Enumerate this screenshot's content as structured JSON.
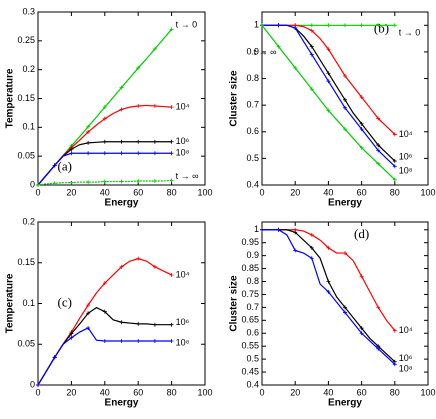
{
  "chart_data": [
    {
      "type": "line",
      "tag": "(a)",
      "x_label": "Energy",
      "y_label": "Temperature",
      "x": [
        0,
        5,
        10,
        15,
        20,
        25,
        30,
        35,
        40,
        45,
        50,
        55,
        60,
        65,
        70,
        75,
        80
      ],
      "xlim": [
        0,
        100
      ],
      "xticks": [
        0,
        20,
        40,
        60,
        80,
        100
      ],
      "ylim": [
        0,
        0.3
      ],
      "yticks": [
        0,
        0.05,
        0.1,
        0.15,
        0.2,
        0.25,
        0.3
      ],
      "series": [
        {
          "name": "t → 0",
          "color": "#00cc00",
          "values": [
            0,
            0.017,
            0.034,
            0.051,
            0.068,
            0.084,
            0.101,
            0.118,
            0.135,
            0.152,
            0.169,
            0.186,
            0.203,
            0.219,
            0.236,
            0.253,
            0.27
          ]
        },
        {
          "name": "10⁴",
          "color": "#ff0000",
          "values": [
            0,
            0.017,
            0.034,
            0.051,
            0.065,
            0.078,
            0.092,
            0.104,
            0.115,
            0.124,
            0.131,
            0.135,
            0.137,
            0.138,
            0.137,
            0.136,
            0.135
          ]
        },
        {
          "name": "10⁶",
          "color": "#000000",
          "values": [
            0,
            0.017,
            0.034,
            0.05,
            0.062,
            0.07,
            0.073,
            0.074,
            0.075,
            0.075,
            0.075,
            0.075,
            0.075,
            0.075,
            0.075,
            0.075,
            0.075
          ]
        },
        {
          "name": "10⁸",
          "color": "#0000ff",
          "values": [
            0,
            0.017,
            0.034,
            0.05,
            0.055,
            0.055,
            0.055,
            0.055,
            0.055,
            0.055,
            0.055,
            0.055,
            0.055,
            0.055,
            0.055,
            0.055,
            0.055
          ]
        },
        {
          "name": "t → ∞",
          "color": "#00cc00",
          "values": [
            0,
            0.002,
            0.003,
            0.004,
            0.004,
            0.005,
            0.005,
            0.005,
            0.006,
            0.006,
            0.006,
            0.006,
            0.007,
            0.007,
            0.007,
            0.007,
            0.008
          ]
        }
      ]
    },
    {
      "type": "line",
      "tag": "(b)",
      "x_label": "Energy",
      "y_label": "Cluster size",
      "x": [
        0,
        5,
        10,
        15,
        20,
        25,
        30,
        35,
        40,
        45,
        50,
        55,
        60,
        65,
        70,
        75,
        80
      ],
      "xlim": [
        0,
        100
      ],
      "xticks": [
        0,
        20,
        40,
        60,
        80,
        100
      ],
      "ylim": [
        0.4,
        1.05
      ],
      "yticks": [
        0.4,
        0.5,
        0.6,
        0.7,
        0.8,
        0.9,
        1
      ],
      "series": [
        {
          "name": "t → 0",
          "color": "#00cc00",
          "values": [
            1,
            1,
            1,
            1,
            1,
            1,
            1,
            1,
            1,
            1,
            1,
            1,
            1,
            1,
            1,
            1,
            1
          ]
        },
        {
          "name": "10⁴",
          "color": "#ff0000",
          "values": [
            1,
            1,
            1,
            1,
            1,
            0.995,
            0.98,
            0.95,
            0.91,
            0.86,
            0.81,
            0.77,
            0.73,
            0.69,
            0.65,
            0.62,
            0.59
          ]
        },
        {
          "name": "10⁶",
          "color": "#000000",
          "values": [
            1,
            1,
            1,
            1,
            0.99,
            0.96,
            0.92,
            0.87,
            0.82,
            0.77,
            0.72,
            0.67,
            0.63,
            0.59,
            0.55,
            0.52,
            0.49
          ]
        },
        {
          "name": "10⁸",
          "color": "#0000ff",
          "values": [
            1,
            1,
            1,
            1,
            0.99,
            0.94,
            0.89,
            0.84,
            0.79,
            0.74,
            0.69,
            0.65,
            0.61,
            0.57,
            0.53,
            0.5,
            0.47
          ]
        },
        {
          "name": "t → ∞",
          "color": "#00cc00",
          "values": [
            1,
            0.96,
            0.92,
            0.88,
            0.84,
            0.8,
            0.76,
            0.72,
            0.68,
            0.645,
            0.61,
            0.575,
            0.54,
            0.51,
            0.48,
            0.45,
            0.42
          ]
        }
      ]
    },
    {
      "type": "line",
      "tag": "(c)",
      "x_label": "Energy",
      "y_label": "Temperature",
      "x": [
        0,
        5,
        10,
        15,
        20,
        25,
        30,
        35,
        40,
        45,
        50,
        55,
        60,
        65,
        70,
        75,
        80
      ],
      "xlim": [
        0,
        100
      ],
      "xticks": [
        0,
        20,
        40,
        60,
        80,
        100
      ],
      "ylim": [
        0,
        0.2
      ],
      "yticks": [
        0,
        0.05,
        0.1,
        0.15,
        0.2
      ],
      "series": [
        {
          "name": "10⁴",
          "color": "#ff0000",
          "values": [
            0,
            0.017,
            0.034,
            0.05,
            0.065,
            0.082,
            0.098,
            0.113,
            0.125,
            0.135,
            0.145,
            0.152,
            0.155,
            0.152,
            0.145,
            0.14,
            0.135
          ]
        },
        {
          "name": "10⁶",
          "color": "#000000",
          "values": [
            0,
            0.017,
            0.034,
            0.05,
            0.063,
            0.075,
            0.088,
            0.095,
            0.09,
            0.08,
            0.077,
            0.076,
            0.075,
            0.075,
            0.074,
            0.074,
            0.074
          ]
        },
        {
          "name": "10⁸",
          "color": "#0000ff",
          "values": [
            0,
            0.017,
            0.034,
            0.05,
            0.058,
            0.065,
            0.07,
            0.055,
            0.054,
            0.054,
            0.054,
            0.054,
            0.054,
            0.054,
            0.054,
            0.054,
            0.054
          ]
        }
      ]
    },
    {
      "type": "line",
      "tag": "(d)",
      "x_label": "Energy",
      "y_label": "Cluster size",
      "x": [
        0,
        5,
        10,
        15,
        20,
        25,
        30,
        35,
        40,
        45,
        50,
        55,
        60,
        65,
        70,
        75,
        80
      ],
      "xlim": [
        0,
        100
      ],
      "xticks": [
        0,
        20,
        40,
        60,
        80,
        100
      ],
      "ylim": [
        0.4,
        1.03
      ],
      "yticks": [
        0.4,
        0.45,
        0.5,
        0.55,
        0.6,
        0.65,
        0.7,
        0.75,
        0.8,
        0.85,
        0.9,
        0.95,
        1
      ],
      "series": [
        {
          "name": "10⁴",
          "color": "#ff0000",
          "values": [
            1,
            1,
            1,
            1,
            1,
            0.995,
            0.98,
            0.96,
            0.93,
            0.91,
            0.91,
            0.88,
            0.82,
            0.76,
            0.7,
            0.65,
            0.61
          ]
        },
        {
          "name": "10⁶",
          "color": "#000000",
          "values": [
            1,
            1,
            1,
            1,
            0.99,
            0.96,
            0.93,
            0.89,
            0.8,
            0.74,
            0.7,
            0.66,
            0.62,
            0.58,
            0.55,
            0.52,
            0.49
          ]
        },
        {
          "name": "10⁸",
          "color": "#0000ff",
          "values": [
            1,
            1,
            1,
            0.98,
            0.92,
            0.91,
            0.89,
            0.79,
            0.76,
            0.72,
            0.68,
            0.64,
            0.6,
            0.57,
            0.54,
            0.51,
            0.48
          ]
        }
      ]
    }
  ]
}
